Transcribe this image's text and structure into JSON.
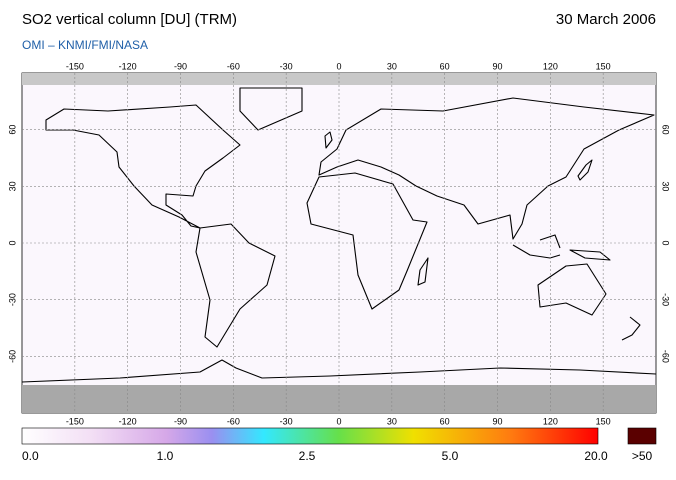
{
  "header": {
    "title": "SO2 vertical column [DU] (TRM)",
    "date": "30 March 2006",
    "credit": "OMI  –  KNMI/FMI/NASA"
  },
  "map": {
    "lon_range": [
      -180,
      180
    ],
    "lat_range": [
      -90,
      90
    ],
    "lon_ticks": [
      -150,
      -120,
      -90,
      -60,
      -30,
      0,
      30,
      60,
      90,
      120,
      150
    ],
    "lat_ticks": [
      60,
      30,
      0,
      -30,
      -60
    ]
  },
  "colorbar": {
    "labels": [
      "0.0",
      "1.0",
      "2.5",
      "5.0",
      "20.0",
      ">50"
    ]
  }
}
